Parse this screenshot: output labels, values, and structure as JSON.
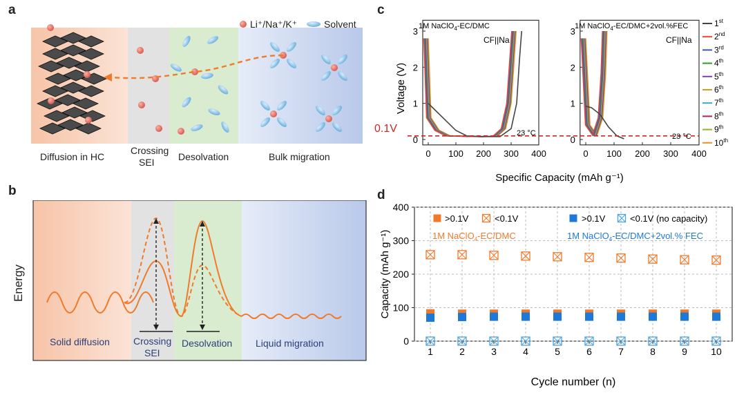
{
  "panel_a": {
    "letter": "a",
    "legend_ion": "Li⁺/Na⁺/K⁺",
    "legend_solvent": "Solvent",
    "labels": [
      "Diffusion in HC",
      "Crossing",
      "SEI",
      "Desolvation",
      "Bulk migration"
    ]
  },
  "panel_b": {
    "letter": "b",
    "ylabel": "Energy",
    "labels": [
      "Solid diffusion",
      "Crossing",
      "SEI",
      "Desolvation",
      "Liquid migration"
    ]
  },
  "panel_c": {
    "letter": "c",
    "ylabel": "Voltage (V)",
    "xlabel": "Specific Capacity (mAh g⁻¹)",
    "threshold_label": "0.1V",
    "temp_label": "23 °C",
    "left_title": "1M NaClO",
    "left_title_sub": "4",
    "left_title_rest": "-EC/DMC",
    "right_title": "1M NaClO",
    "right_title_sub": "4",
    "right_title_rest": "-EC/DMC+2vol.%FEC",
    "cell_label": "CF||Na",
    "legend": [
      {
        "n": "1",
        "sup": "st",
        "color": "#444444"
      },
      {
        "n": "2",
        "sup": "nd",
        "color": "#e8463c"
      },
      {
        "n": "3",
        "sup": "rd",
        "color": "#3a55c8"
      },
      {
        "n": "4",
        "sup": "th",
        "color": "#2ca02c"
      },
      {
        "n": "5",
        "sup": "th",
        "color": "#7b3fb5"
      },
      {
        "n": "6",
        "sup": "th",
        "color": "#d4a017"
      },
      {
        "n": "7",
        "sup": "th",
        "color": "#3aa6c9"
      },
      {
        "n": "8",
        "sup": "th",
        "color": "#c2185b"
      },
      {
        "n": "9",
        "sup": "th",
        "color": "#8db33a"
      },
      {
        "n": "10",
        "sup": "th",
        "color": "#f28c28"
      }
    ]
  },
  "chart_data": [
    {
      "type": "line",
      "title": "1M NaClO4-EC/DMC",
      "xlabel": "Specific Capacity (mAh g⁻¹)",
      "ylabel": "Voltage (V)",
      "xlim": [
        -20,
        400
      ],
      "ylim": [
        -0.15,
        3.3
      ],
      "xticks": [
        0,
        100,
        200,
        300,
        400
      ],
      "yticks": [
        0,
        1,
        2,
        3
      ],
      "annotations": [
        "CF||Na",
        "23 °C",
        "0.1V"
      ],
      "series": [
        {
          "name": "1st",
          "x": [
            0,
            20,
            60,
            100,
            140,
            200,
            260,
            300,
            320,
            330,
            338
          ],
          "y": [
            1.0,
            0.85,
            0.55,
            0.25,
            0.1,
            0.08,
            0.08,
            0.3,
            1.0,
            2.2,
            3.0
          ]
        },
        {
          "name": "10th",
          "x": [
            0,
            10,
            40,
            80,
            200,
            250,
            280,
            300,
            310,
            318
          ],
          "y": [
            2.8,
            0.6,
            0.25,
            0.1,
            0.08,
            0.09,
            0.3,
            1.0,
            2.1,
            3.0
          ]
        }
      ]
    },
    {
      "type": "line",
      "title": "1M NaClO4-EC/DMC+2vol.%FEC",
      "xlabel": "Specific Capacity (mAh g⁻¹)",
      "xlim": [
        -20,
        400
      ],
      "ylim": [
        -0.15,
        3.3
      ],
      "xticks": [
        0,
        100,
        200,
        300,
        400
      ],
      "yticks": [
        0,
        1,
        2,
        3
      ],
      "annotations": [
        "CF||Na",
        "23 °C"
      ],
      "series": [
        {
          "name": "1st",
          "x": [
            0,
            20,
            50,
            80,
            110,
            135
          ],
          "y": [
            0.92,
            0.88,
            0.7,
            0.35,
            0.1,
            0.02
          ]
        },
        {
          "name": "10th",
          "x": [
            0,
            15,
            40,
            60,
            70,
            75
          ],
          "y": [
            2.8,
            0.4,
            0.12,
            0.6,
            1.8,
            3.0
          ]
        }
      ]
    },
    {
      "type": "scatter",
      "xlabel": "Cycle number (n)",
      "ylabel": "Capacity (mAh g⁻¹)",
      "xlim": [
        0.5,
        10.5
      ],
      "ylim": [
        0,
        400
      ],
      "xticks": [
        1,
        2,
        3,
        4,
        5,
        6,
        7,
        8,
        9,
        10
      ],
      "yticks": [
        0,
        100,
        200,
        300,
        400
      ],
      "grid": true,
      "x": [
        1,
        2,
        3,
        4,
        5,
        6,
        7,
        8,
        9,
        10
      ],
      "series": [
        {
          "name": ">0.1V",
          "group": "1M NaClO4-EC/DMC",
          "marker": "filled-square",
          "color": "#f07a2a",
          "values": [
            83,
            82,
            82,
            82,
            82,
            82,
            82,
            82,
            82,
            82
          ]
        },
        {
          "name": "<0.1V",
          "group": "1M NaClO4-EC/DMC",
          "marker": "crossed-square",
          "color": "#f07a2a",
          "values": [
            258,
            258,
            256,
            254,
            252,
            250,
            248,
            245,
            243,
            242
          ]
        },
        {
          "name": ">0.1V",
          "group": "1M NaClO4-EC/DMC+2vol.% FEC",
          "marker": "filled-square",
          "color": "#1e78d8",
          "values": [
            70,
            72,
            73,
            73,
            73,
            73,
            73,
            73,
            73,
            73
          ]
        },
        {
          "name": "<0.1V (no capacity)",
          "group": "1M NaClO4-EC/DMC+2vol.% FEC",
          "marker": "crossed-square",
          "color": "#4aa3e0",
          "values": [
            0,
            0,
            0,
            0,
            0,
            0,
            0,
            0,
            0,
            0
          ]
        }
      ]
    }
  ],
  "panel_d": {
    "letter": "d",
    "ylabel": "Capacity (mAh g⁻¹)",
    "xlabel": "Cycle number (n)",
    "legend_gt": ">0.1V",
    "legend_lt": "<0.1V",
    "legend_lt_nocap": "<0.1V (no capacity)",
    "label_left": "1M NaClO",
    "label_left_sub": "4",
    "label_left_rest": "-EC/DMC",
    "label_right": "1M NaClO",
    "label_right_sub": "4",
    "label_right_rest": "-EC/DMC+2vol.% FEC"
  }
}
